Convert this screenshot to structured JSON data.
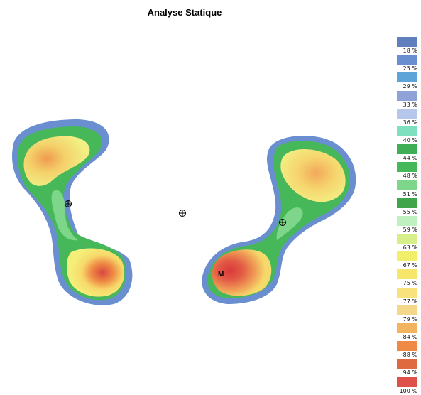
{
  "title": "Analyse Statique",
  "marker_label": "M",
  "legend": [
    {
      "label": "18 %",
      "color": "#5f7fbd"
    },
    {
      "label": "25 %",
      "color": "#6a8fd0"
    },
    {
      "label": "29 %",
      "color": "#5da4d8"
    },
    {
      "label": "33 %",
      "color": "#8ea2d8"
    },
    {
      "label": "36 %",
      "color": "#b7c6ec"
    },
    {
      "label": "40 %",
      "color": "#7fe0c0"
    },
    {
      "label": "44 %",
      "color": "#3fae55"
    },
    {
      "label": "48 %",
      "color": "#47b85a"
    },
    {
      "label": "51 %",
      "color": "#7ed68a"
    },
    {
      "label": "55 %",
      "color": "#3fa548"
    },
    {
      "label": "59 %",
      "color": "#bff0c0"
    },
    {
      "label": "63 %",
      "color": "#d7ef8a"
    },
    {
      "label": "67 %",
      "color": "#f1ef6a"
    },
    {
      "label": "75 %",
      "color": "#f6e66a"
    },
    {
      "label": "77 %",
      "color": "#f7e27c"
    },
    {
      "label": "79 %",
      "color": "#f4d78a"
    },
    {
      "label": "84 %",
      "color": "#f2b45e"
    },
    {
      "label": "88 %",
      "color": "#ee8a45"
    },
    {
      "label": "94 %",
      "color": "#e06a3f"
    },
    {
      "label": "100 %",
      "color": "#e0504a"
    }
  ]
}
